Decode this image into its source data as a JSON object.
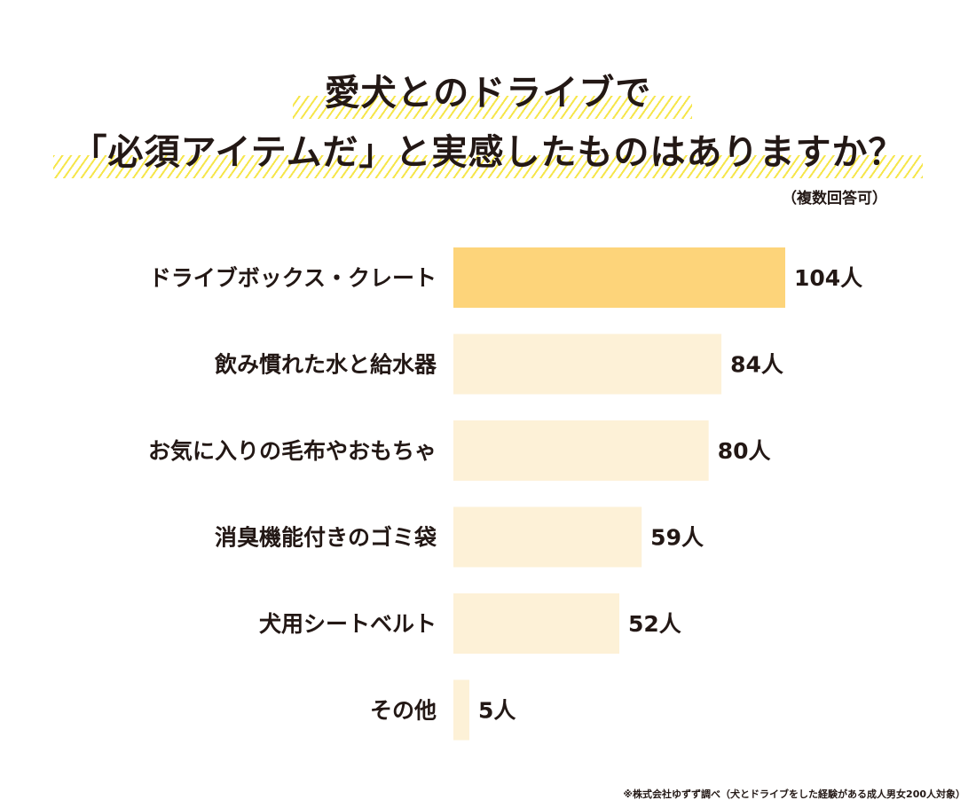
{
  "title": {
    "line1": "愛犬とのドライブで",
    "line2": "「必須アイテムだ」と実感したものはありますか？",
    "note": "（複数回答可）"
  },
  "footnote": "※株式会社ゆずず調べ（犬とドライブをした経験がある成人男女200人対象）",
  "colors": {
    "highlight_bar": "#fdd47a",
    "bar": "#fdf1d7",
    "hatch": "#f6e64a",
    "text": "#231815"
  },
  "chart_data": {
    "type": "bar",
    "orientation": "horizontal",
    "unit": "人",
    "categories": [
      "ドライブボックス・クレート",
      "飲み慣れた水と給水器",
      "お気に入りの毛布やおもちゃ",
      "消臭機能付きのゴミ袋",
      "犬用シートベルト",
      "その他"
    ],
    "values": [
      104,
      84,
      80,
      59,
      52,
      5
    ],
    "value_labels": [
      "104人",
      "84人",
      "80人",
      "59人",
      "52人",
      "5人"
    ],
    "highlight_index": 0,
    "xlim": [
      0,
      104
    ],
    "grid": false,
    "legend": "none"
  }
}
